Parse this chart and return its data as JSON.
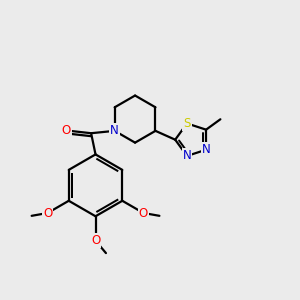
{
  "bg_color": "#ebebeb",
  "line_color": "#000000",
  "bond_width": 1.6,
  "atom_colors": {
    "O": "#ff0000",
    "N": "#0000cc",
    "S": "#cccc00",
    "C": "#000000"
  },
  "font_size_atom": 8.5
}
